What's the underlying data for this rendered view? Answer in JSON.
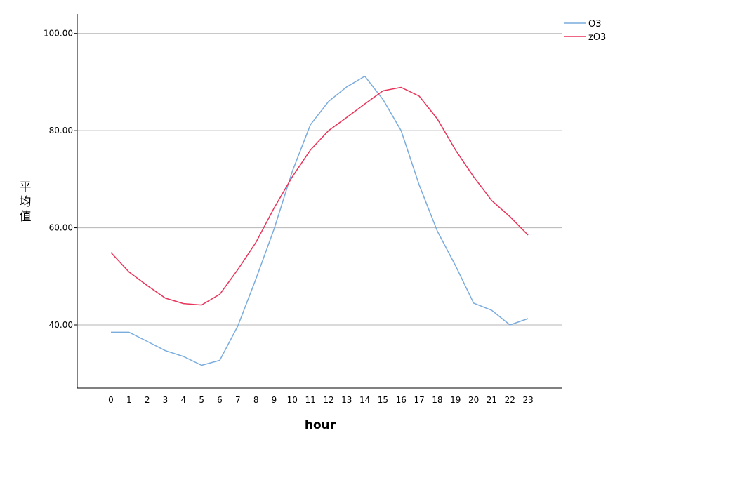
{
  "chart_data": {
    "type": "line",
    "xlabel": "hour",
    "ylabel": "平均值",
    "categories": [
      "0",
      "1",
      "2",
      "3",
      "4",
      "5",
      "6",
      "7",
      "8",
      "9",
      "10",
      "11",
      "12",
      "13",
      "14",
      "15",
      "16",
      "17",
      "18",
      "19",
      "20",
      "21",
      "22",
      "23"
    ],
    "y_ticks": [
      "40.00",
      "60.00",
      "80.00",
      "100.00"
    ],
    "ylim": [
      27,
      104
    ],
    "grid": "horizontal",
    "legend": "top-right",
    "series": [
      {
        "name": "O3",
        "color": "#7aacde",
        "values": [
          38.5,
          38.5,
          36.6,
          34.7,
          33.5,
          31.7,
          32.7,
          39.8,
          49.5,
          59.8,
          71.6,
          81.2,
          86.0,
          89.0,
          91.2,
          86.4,
          80.0,
          68.8,
          59.3,
          52.2,
          44.5,
          43.0,
          40.0,
          41.3
        ]
      },
      {
        "name": "zO3",
        "color": "#e8345a",
        "values": [
          54.9,
          50.9,
          48.1,
          45.5,
          44.4,
          44.1,
          46.3,
          51.4,
          57.0,
          64.1,
          70.5,
          76.0,
          80.0,
          82.7,
          85.5,
          88.2,
          88.9,
          87.1,
          82.4,
          76.0,
          70.5,
          65.6,
          62.3,
          58.5
        ]
      }
    ]
  }
}
